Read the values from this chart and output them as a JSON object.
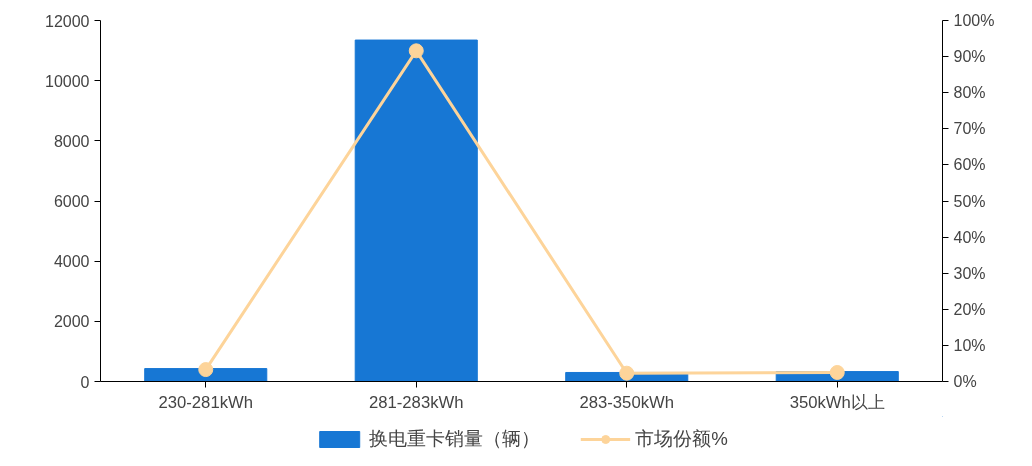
{
  "chart_data": {
    "type": "bar",
    "categories": [
      "230-281kWh",
      "281-283kWh",
      "283-350kWh",
      "350kWh以上"
    ],
    "series": [
      {
        "name": "换电重卡销量（辆）",
        "color": "#1777d4",
        "values": [
          430,
          11350,
          300,
          330
        ]
      },
      {
        "name": "市场份额%",
        "type": "line",
        "axis": "y2",
        "color": "#fdd49a",
        "values": [
          3.3,
          91.6,
          2.3,
          2.5
        ],
        "marker": "circle"
      }
    ],
    "ylim": [
      0,
      12000
    ],
    "yticks": [
      0,
      2000,
      4000,
      6000,
      8000,
      10000,
      12000
    ],
    "y2lim": [
      0,
      100
    ],
    "y2ticks": [
      {
        "value": 0,
        "label": "0%"
      },
      {
        "value": 10,
        "label": "10%"
      },
      {
        "value": 20,
        "label": "20%"
      },
      {
        "value": 30,
        "label": "30%"
      },
      {
        "value": 40,
        "label": "40%"
      },
      {
        "value": 50,
        "label": "50%"
      },
      {
        "value": 60,
        "label": "60%"
      },
      {
        "value": 70,
        "label": "70%"
      },
      {
        "value": 80,
        "label": "80%"
      },
      {
        "value": 90,
        "label": "90%"
      },
      {
        "value": 100,
        "label": "100%"
      }
    ],
    "grid": false,
    "legend": "bottom"
  }
}
